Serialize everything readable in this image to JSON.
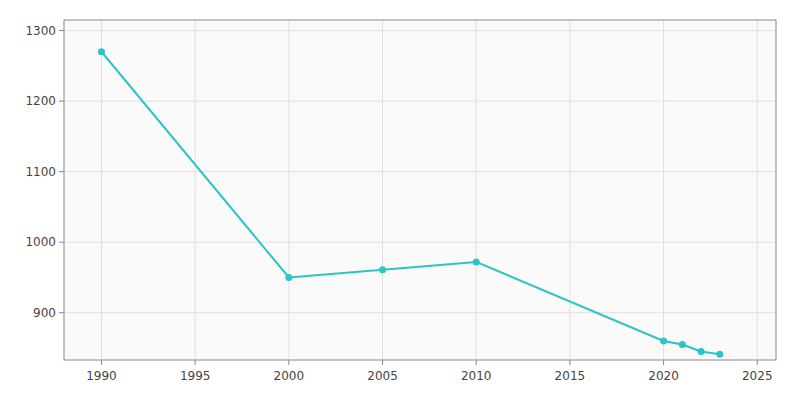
{
  "chart_data": {
    "type": "line",
    "x": [
      1990,
      2000,
      2005,
      2010,
      2020,
      2021,
      2022,
      2023
    ],
    "values": [
      1270,
      950,
      961,
      972,
      860,
      855,
      845,
      841
    ],
    "color": "#2EC4C4",
    "marker": "circle",
    "xlim": [
      1988.0,
      2026.0
    ],
    "ylim": [
      833,
      1315
    ],
    "xticks": [
      1990,
      1995,
      2000,
      2005,
      2010,
      2015,
      2020,
      2025
    ],
    "yticks": [
      900,
      1000,
      1100,
      1200,
      1300
    ],
    "grid": true
  }
}
